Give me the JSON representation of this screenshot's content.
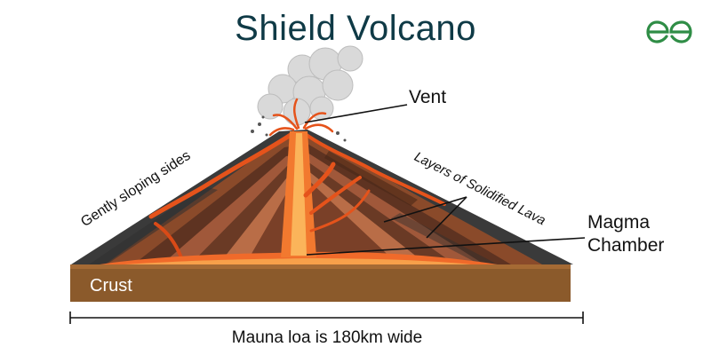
{
  "title": "Shield Volcano",
  "labels": {
    "vent": "Vent",
    "layers": "Layers of Solidified Lava",
    "gently": "Gently sloping sides",
    "magma_line1": "Magma",
    "magma_line2": "Chamber",
    "crust": "Crust",
    "width": "Mauna loa is 180km wide"
  },
  "logo": {
    "name": "geeksforgeeks-logo",
    "color": "#2f8d46"
  },
  "colors": {
    "title": "#0f3a46",
    "rock_dark": "#3b3b3b",
    "rock_brown": "#8a4a2a",
    "lava": "#ef5a1f",
    "crust": "#8b5a2b"
  }
}
